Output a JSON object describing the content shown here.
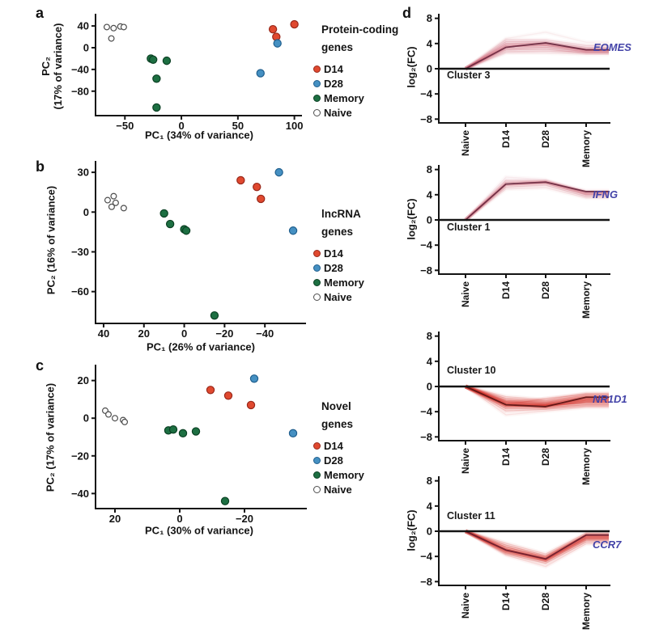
{
  "figure": {
    "gene_label_color": "#4343a8",
    "axis_color": "#141414",
    "background": "#ffffff"
  },
  "chart_data": [
    {
      "id": "a",
      "panel_letter": "a",
      "type": "scatter",
      "xlabel": "PC₁ (34% of variance)",
      "ylabel_lines": [
        "PC₂",
        "(17% of variance)"
      ],
      "legend_title": [
        "Protein-coding",
        "genes"
      ],
      "xlim": [
        -76,
        106
      ],
      "ylim": [
        -125,
        61
      ],
      "x_ticks": [
        -50,
        0,
        50,
        100
      ],
      "y_ticks": [
        40,
        0,
        -40,
        -80
      ],
      "series": [
        {
          "name": "D14",
          "fill": "#e0492f",
          "edge": "#99281a",
          "points": [
            [
              81,
              34
            ],
            [
              84,
              20
            ],
            [
              100,
              43
            ]
          ]
        },
        {
          "name": "D28",
          "fill": "#4590c2",
          "edge": "#1f5e8d",
          "points": [
            [
              85,
              8
            ],
            [
              70,
              -47
            ]
          ]
        },
        {
          "name": "Memory",
          "fill": "#1d6f42",
          "edge": "#0b4023",
          "points": [
            [
              -27,
              -20
            ],
            [
              -25,
              -22
            ],
            [
              -13,
              -24
            ],
            [
              -22,
              -57
            ],
            [
              -22,
              -110
            ]
          ]
        },
        {
          "name": "Naive",
          "fill": "#ffffff",
          "edge": "#4d4d4d",
          "points": [
            [
              -66,
              38
            ],
            [
              -60,
              36
            ],
            [
              -54,
              39
            ],
            [
              -51,
              38
            ],
            [
              -62,
              17
            ]
          ]
        }
      ]
    },
    {
      "id": "b",
      "panel_letter": "b",
      "type": "scatter",
      "xlabel": "PC₁ (26% of variance)",
      "ylabel_lines": [
        "PC₂ (16% of variance)"
      ],
      "legend_title": [
        "lncRNA",
        "genes"
      ],
      "xlim": [
        44,
        -60
      ],
      "ylim": [
        -84,
        38
      ],
      "x_ticks": [
        40,
        20,
        0,
        -20,
        -40
      ],
      "y_ticks": [
        30,
        0,
        -30,
        -60
      ],
      "series": [
        {
          "name": "D14",
          "fill": "#e0492f",
          "edge": "#99281a",
          "points": [
            [
              -28,
              24
            ],
            [
              -36,
              19
            ],
            [
              -38,
              10
            ]
          ]
        },
        {
          "name": "D28",
          "fill": "#4590c2",
          "edge": "#1f5e8d",
          "points": [
            [
              -47,
              30
            ],
            [
              -54,
              -14
            ]
          ]
        },
        {
          "name": "Memory",
          "fill": "#1d6f42",
          "edge": "#0b4023",
          "points": [
            [
              10,
              -1
            ],
            [
              7,
              -9
            ],
            [
              0,
              -13
            ],
            [
              -1,
              -14
            ],
            [
              -15,
              -78
            ]
          ]
        },
        {
          "name": "Naive",
          "fill": "#ffffff",
          "edge": "#4d4d4d",
          "points": [
            [
              38,
              9
            ],
            [
              35,
              12
            ],
            [
              34,
              7
            ],
            [
              36,
              4
            ],
            [
              30,
              3
            ]
          ]
        }
      ]
    },
    {
      "id": "c",
      "panel_letter": "c",
      "type": "scatter",
      "xlabel": "PC₁ (30% of variance)",
      "ylabel_lines": [
        "PC₂ (17% of variance)"
      ],
      "legend_title": [
        "Novel",
        "genes"
      ],
      "xlim": [
        26,
        -39
      ],
      "ylim": [
        -48,
        28
      ],
      "x_ticks": [
        20,
        0,
        -20
      ],
      "y_ticks": [
        20,
        0,
        -20,
        -40
      ],
      "series": [
        {
          "name": "D14",
          "fill": "#e0492f",
          "edge": "#99281a",
          "points": [
            [
              -9.5,
              15
            ],
            [
              -15,
              12
            ],
            [
              -22,
              7
            ]
          ]
        },
        {
          "name": "D28",
          "fill": "#4590c2",
          "edge": "#1f5e8d",
          "points": [
            [
              -23,
              21
            ],
            [
              -35,
              -8
            ]
          ]
        },
        {
          "name": "Memory",
          "fill": "#1d6f42",
          "edge": "#0b4023",
          "points": [
            [
              3.5,
              -6.5
            ],
            [
              2,
              -6
            ],
            [
              -1,
              -8
            ],
            [
              -5,
              -7
            ],
            [
              -14,
              -44
            ]
          ]
        },
        {
          "name": "Naive",
          "fill": "#ffffff",
          "edge": "#4d4d4d",
          "points": [
            [
              23,
              4
            ],
            [
              22,
              2
            ],
            [
              20,
              0
            ],
            [
              17.5,
              -1
            ],
            [
              17,
              -2
            ]
          ]
        }
      ]
    },
    {
      "id": "d1",
      "panel_letter": "d",
      "type": "line",
      "cluster_label": "Cluster 3",
      "gene": "EOMES",
      "ylabel": "log₂(FC)",
      "categories": [
        "Naive",
        "D14",
        "D28",
        "Memory"
      ],
      "ylim": [
        -8.6,
        8.6
      ],
      "y_ticks": [
        8,
        4,
        0,
        -4,
        -8
      ],
      "line_color": "#c44358",
      "highlight_color": "#6e2c42",
      "lines": [
        {
          "y": [
            0,
            4.8,
            5.8,
            4.2
          ],
          "a": 0.07
        },
        {
          "y": [
            0,
            4.6,
            4.6,
            3.7
          ],
          "a": 0.14
        },
        {
          "y": [
            0,
            4.3,
            4.3,
            3.4
          ],
          "a": 0.2
        },
        {
          "y": [
            0,
            4.0,
            4.1,
            3.1
          ],
          "a": 0.28
        },
        {
          "y": [
            0,
            3.7,
            3.9,
            3.0
          ],
          "a": 0.33
        },
        {
          "y": [
            0,
            3.5,
            3.7,
            2.9
          ],
          "a": 0.33
        },
        {
          "y": [
            0,
            3.2,
            3.4,
            2.7
          ],
          "a": 0.28
        },
        {
          "y": [
            0,
            3.0,
            3.1,
            2.5
          ],
          "a": 0.22
        },
        {
          "y": [
            0,
            2.7,
            2.8,
            2.6
          ],
          "a": 0.16
        },
        {
          "y": [
            0,
            2.5,
            2.5,
            2.3
          ],
          "a": 0.1
        }
      ],
      "highlight_y": [
        0,
        3.4,
        4.1,
        3.0
      ]
    },
    {
      "id": "d2",
      "panel_letter": "d",
      "type": "line",
      "cluster_label": "Cluster 1",
      "gene": "IFNG",
      "ylabel": "log₂(FC)",
      "categories": [
        "Naive",
        "D14",
        "D28",
        "Memory"
      ],
      "ylim": [
        -8.6,
        8.6
      ],
      "y_ticks": [
        8,
        4,
        0,
        -4,
        -8
      ],
      "line_color": "#c44358",
      "highlight_color": "#6e2c42",
      "lines": [
        {
          "y": [
            0,
            6.8,
            6.4,
            4.1
          ],
          "a": 0.08
        },
        {
          "y": [
            0,
            6.3,
            6.2,
            4.6
          ],
          "a": 0.16
        },
        {
          "y": [
            0,
            6.0,
            6.1,
            4.4
          ],
          "a": 0.26
        },
        {
          "y": [
            0,
            5.7,
            6.0,
            4.2
          ],
          "a": 0.32
        },
        {
          "y": [
            0,
            5.5,
            5.8,
            4.0
          ],
          "a": 0.28
        },
        {
          "y": [
            0,
            5.2,
            5.5,
            3.7
          ],
          "a": 0.18
        },
        {
          "y": [
            0,
            4.9,
            5.1,
            3.5
          ],
          "a": 0.1
        }
      ],
      "highlight_y": [
        0,
        5.7,
        6.0,
        4.5
      ]
    },
    {
      "id": "d3",
      "panel_letter": "d",
      "type": "line",
      "cluster_label": "Cluster 10",
      "gene": "NR1D1",
      "categories": [
        "Naive",
        "D14",
        "D28",
        "Memory"
      ],
      "ylim": [
        -8.6,
        8.6
      ],
      "y_ticks": [
        8,
        4,
        0,
        -4,
        -8
      ],
      "line_color": "#d32b23",
      "highlight_color": "#5e1515",
      "lines": [
        {
          "y": [
            0,
            -1.6,
            -2.1,
            -1.1
          ],
          "a": 0.15
        },
        {
          "y": [
            0,
            -1.9,
            -2.3,
            -1.4
          ],
          "a": 0.25
        },
        {
          "y": [
            0,
            -2.2,
            -2.5,
            -1.6
          ],
          "a": 0.35
        },
        {
          "y": [
            0,
            -2.4,
            -2.7,
            -1.8
          ],
          "a": 0.45
        },
        {
          "y": [
            0,
            -2.6,
            -2.9,
            -2.0
          ],
          "a": 0.5
        },
        {
          "y": [
            0,
            -2.8,
            -3.0,
            -2.2
          ],
          "a": 0.5
        },
        {
          "y": [
            0,
            -3.0,
            -3.2,
            -2.4
          ],
          "a": 0.45
        },
        {
          "y": [
            0,
            -3.2,
            -3.0,
            -2.6
          ],
          "a": 0.38
        },
        {
          "y": [
            0,
            -3.5,
            -3.4,
            -2.9
          ],
          "a": 0.3
        },
        {
          "y": [
            0,
            -3.9,
            -3.6,
            -3.1
          ],
          "a": 0.2
        },
        {
          "y": [
            0,
            -4.5,
            -3.9,
            -3.3
          ],
          "a": 0.1
        },
        {
          "y": [
            0,
            -2.9,
            -1.9,
            -1.2
          ],
          "a": 0.2
        }
      ],
      "highlight_y": [
        0,
        -2.9,
        -3.2,
        -1.7
      ]
    },
    {
      "id": "d4",
      "panel_letter": "d",
      "type": "line",
      "cluster_label": "Cluster 11",
      "gene": "CCR7",
      "ylabel": "log₂(FC)",
      "categories": [
        "Naive",
        "D14",
        "D28",
        "Memory"
      ],
      "ylim": [
        -8.6,
        8.6
      ],
      "y_ticks": [
        8,
        4,
        0,
        -4,
        -8
      ],
      "line_color": "#d32b23",
      "highlight_color": "#6e1f2e",
      "lines": [
        {
          "y": [
            0,
            -1.9,
            -3.6,
            -0.3
          ],
          "a": 0.15
        },
        {
          "y": [
            0,
            -2.2,
            -3.9,
            -0.5
          ],
          "a": 0.25
        },
        {
          "y": [
            0,
            -2.5,
            -4.1,
            -0.6
          ],
          "a": 0.38
        },
        {
          "y": [
            0,
            -2.8,
            -4.3,
            -0.8
          ],
          "a": 0.48
        },
        {
          "y": [
            0,
            -3.0,
            -4.5,
            -1.0
          ],
          "a": 0.5
        },
        {
          "y": [
            0,
            -3.2,
            -4.6,
            -1.2
          ],
          "a": 0.42
        },
        {
          "y": [
            0,
            -3.4,
            -4.8,
            -1.4
          ],
          "a": 0.32
        },
        {
          "y": [
            0,
            -3.6,
            -5.1,
            -1.7
          ],
          "a": 0.22
        },
        {
          "y": [
            0,
            -3.8,
            -5.6,
            -2.0
          ],
          "a": 0.12
        }
      ],
      "highlight_y": [
        0,
        -3.0,
        -4.4,
        -0.6
      ]
    }
  ]
}
